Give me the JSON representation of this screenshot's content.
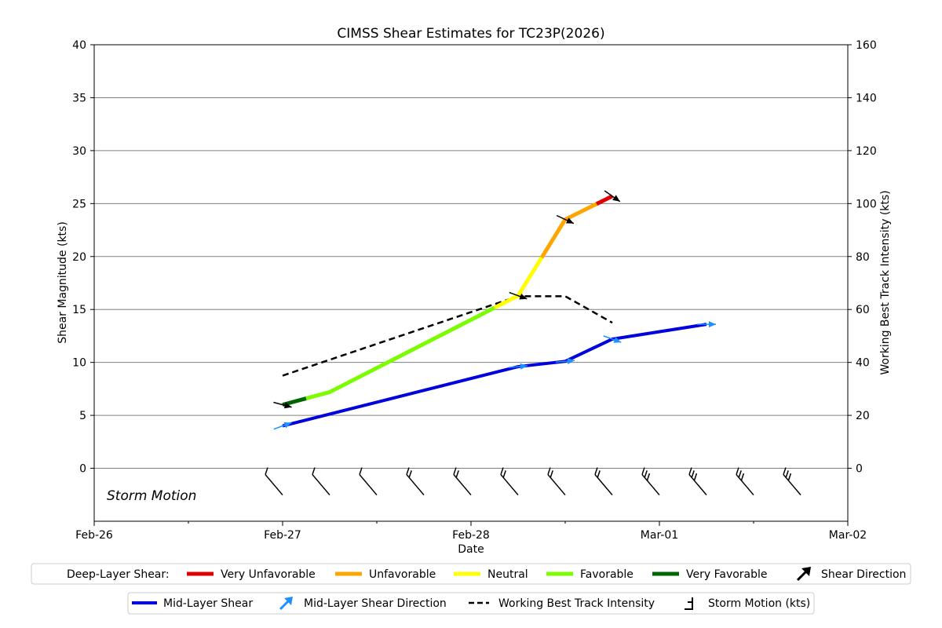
{
  "chart_data": {
    "type": "line",
    "title": "CIMSS Shear Estimates for TC23P(2026)",
    "xlabel": "Date",
    "ylabel": "Shear Magnitude (kts)",
    "y2label": "Working Best Track Intensity (kts)",
    "x_ticks": [
      "Feb-26",
      "Feb-27",
      "Feb-28",
      "Mar-01",
      "Mar-02"
    ],
    "x_range_days": [
      0,
      4
    ],
    "ylim": [
      -5,
      40
    ],
    "y_ticks": [
      0,
      5,
      10,
      15,
      20,
      25,
      30,
      35,
      40
    ],
    "y2lim": [
      -20,
      160
    ],
    "y2_ticks": [
      0,
      20,
      40,
      60,
      80,
      100,
      120,
      140,
      160
    ],
    "grid": "horizontal",
    "annotation": "Storm Motion",
    "deep_layer_shear": {
      "points": [
        {
          "x": "Feb-27 00Z",
          "y": 6.0
        },
        {
          "x": "Feb-27 06Z",
          "y": 7.2
        },
        {
          "x": "Feb-28 06Z",
          "y": 16.3
        },
        {
          "x": "Feb-28 12Z",
          "y": 23.5
        },
        {
          "x": "Feb-28 18Z",
          "y": 25.7
        }
      ],
      "segment_colors": [
        "#006400",
        "#7cfc00",
        "#ffff00",
        "#ffa500",
        "#ffa500"
      ],
      "colored_runs": [
        {
          "from_x": "Feb-27 00Z",
          "to_x": "Feb-27 03Z",
          "color": "#006400"
        },
        {
          "from_x": "Feb-27 03Z",
          "to_x": "Feb-28 03Z",
          "color": "#7cfc00"
        },
        {
          "from_x": "Feb-28 03Z",
          "to_x": "Feb-28 09Z",
          "color": "#ffff00"
        },
        {
          "from_x": "Feb-28 09Z",
          "to_x": "Feb-28 16Z",
          "color": "#ffa500"
        },
        {
          "from_x": "Feb-28 16Z",
          "to_x": "Feb-28 18Z",
          "color": "#e00000"
        }
      ]
    },
    "mid_layer_shear": {
      "name": "Mid-Layer Shear",
      "color": "#0000dd",
      "points": [
        {
          "x": "Feb-27 00Z",
          "y": 4.0
        },
        {
          "x": "Feb-28 06Z",
          "y": 9.6
        },
        {
          "x": "Feb-28 12Z",
          "y": 10.1
        },
        {
          "x": "Feb-28 18Z",
          "y": 12.2
        },
        {
          "x": "Mar-01 06Z",
          "y": 13.6
        }
      ]
    },
    "working_best_track_intensity": {
      "name": "Working Best Track Intensity",
      "points": [
        {
          "x": "Feb-27 00Z",
          "y": 35
        },
        {
          "x": "Feb-28 06Z",
          "y": 65
        },
        {
          "x": "Feb-28 12Z",
          "y": 65
        },
        {
          "x": "Feb-28 18Z",
          "y": 55
        }
      ]
    },
    "storm_motion_times": [
      "Feb-26 21Z",
      "Feb-27 03Z",
      "Feb-27 09Z",
      "Feb-27 15Z",
      "Feb-27 21Z",
      "Feb-28 03Z",
      "Feb-28 09Z",
      "Feb-28 15Z",
      "Feb-28 21Z",
      "Mar-01 03Z",
      "Mar-01 09Z",
      "Mar-01 15Z"
    ]
  },
  "legend1": {
    "title": "Deep-Layer Shear:",
    "items": [
      {
        "label": "Very Unfavorable",
        "color": "#e00000"
      },
      {
        "label": "Unfavorable",
        "color": "#ffa500"
      },
      {
        "label": "Neutral",
        "color": "#ffff00"
      },
      {
        "label": "Favorable",
        "color": "#7cfc00"
      },
      {
        "label": "Very Favorable",
        "color": "#006400"
      }
    ],
    "direction_label": "Shear Direction"
  },
  "legend2": {
    "mid_layer": "Mid-Layer Shear",
    "mid_direction": "Mid-Layer Shear Direction",
    "wbt": "Working Best Track Intensity",
    "storm_motion": "Storm Motion (kts)"
  }
}
